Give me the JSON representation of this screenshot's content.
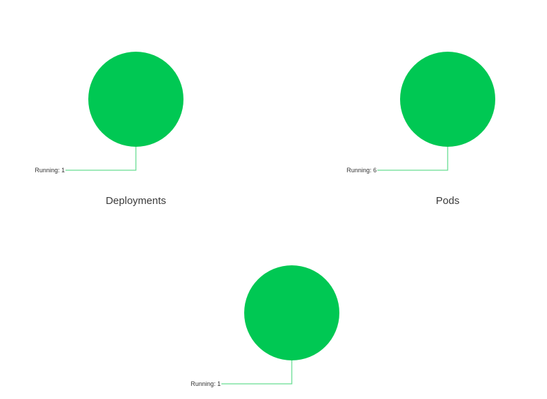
{
  "chart_data": [
    {
      "type": "pie",
      "title": "Deployments",
      "slices": [
        {
          "label": "Running: 1",
          "status": "Running",
          "value": 1,
          "color": "#00c853"
        }
      ]
    },
    {
      "type": "pie",
      "title": "Pods",
      "slices": [
        {
          "label": "Running: 6",
          "status": "Running",
          "value": 6,
          "color": "#00c853"
        }
      ]
    },
    {
      "type": "pie",
      "title": "",
      "slices": [
        {
          "label": "Running: 1",
          "status": "Running",
          "value": 1,
          "color": "#00c853"
        }
      ]
    }
  ]
}
